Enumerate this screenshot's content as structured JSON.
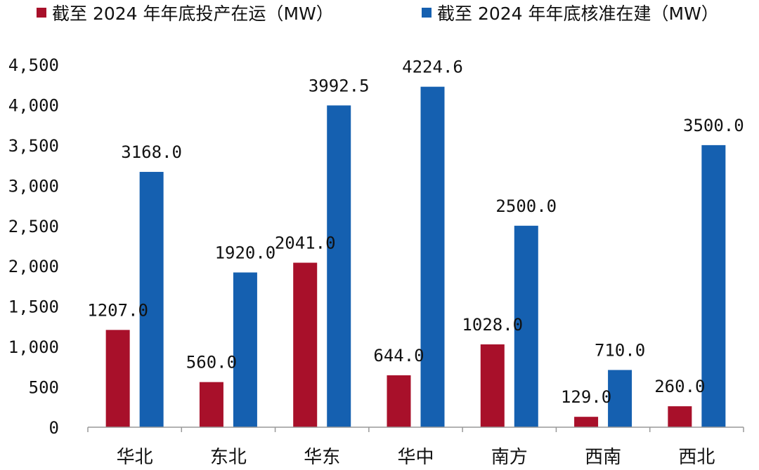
{
  "chart_data": {
    "type": "bar",
    "title": "",
    "xlabel": "",
    "ylabel": "",
    "ylim": [
      0,
      4500
    ],
    "yticks": [
      "0",
      "500",
      "1,000",
      "1,500",
      "2,000",
      "2,500",
      "3,000",
      "3,500",
      "4,000",
      "4,500"
    ],
    "ytick_values": [
      0,
      500,
      1000,
      1500,
      2000,
      2500,
      3000,
      3500,
      4000,
      4500
    ],
    "grid": false,
    "legend_position": "top",
    "categories": [
      "华北",
      "东北",
      "华东",
      "华中",
      "南方",
      "西南",
      "西北"
    ],
    "series": [
      {
        "name": "截至 2024 年年底投产在运（MW）",
        "color": "#A8102A",
        "values": [
          1207.0,
          560.0,
          2041.0,
          644.0,
          1028.0,
          129.0,
          260.0
        ],
        "labels": [
          "1207.0",
          "560.0",
          "2041.0",
          "644.0",
          "1028.0",
          "129.0",
          "260.0"
        ]
      },
      {
        "name": "截至 2024 年年底核准在建（MW）",
        "color": "#1560B0",
        "values": [
          3168.0,
          1920.0,
          3992.5,
          4224.6,
          2500.0,
          710.0,
          3500.0
        ],
        "labels": [
          "3168.0",
          "1920.0",
          "3992.5",
          "4224.6",
          "2500.0",
          "710.0",
          "3500.0"
        ]
      }
    ]
  }
}
